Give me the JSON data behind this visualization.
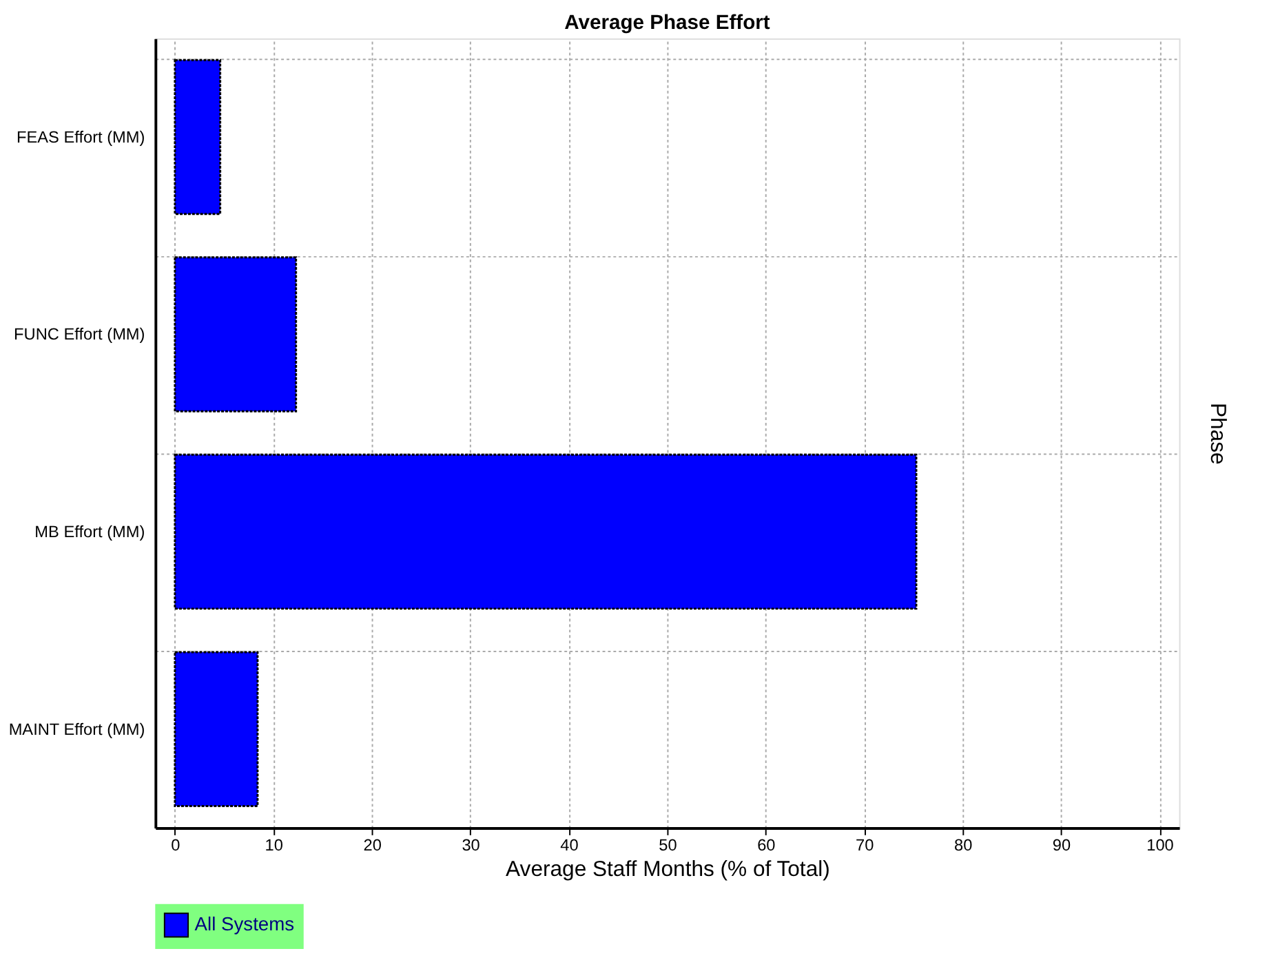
{
  "chart_data": {
    "type": "bar",
    "orientation": "horizontal",
    "title": "Average Phase Effort",
    "categories": [
      "FEAS Effort (MM)",
      "FUNC Effort (MM)",
      "MB Effort (MM)",
      "MAINT Effort (MM)"
    ],
    "series": [
      {
        "name": "All Systems",
        "color": "#0000ff",
        "values": [
          4.6,
          12.3,
          75.3,
          8.4
        ]
      }
    ],
    "xlabel": "Average Staff Months (% of Total)",
    "ylabel": "Phase",
    "xlim": [
      -2,
      102
    ],
    "xticks": [
      0,
      10,
      20,
      30,
      40,
      50,
      60,
      70,
      80,
      90,
      100
    ],
    "grid": true,
    "legend": "bottom"
  }
}
